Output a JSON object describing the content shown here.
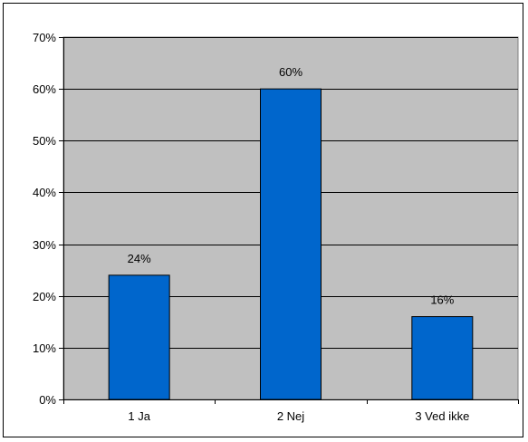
{
  "chart_data": {
    "type": "bar",
    "title": "",
    "xlabel": "",
    "ylabel": "",
    "categories": [
      "1 Ja",
      "2 Nej",
      "3 Ved ikke"
    ],
    "values": [
      24,
      60,
      16
    ],
    "data_labels": [
      "24%",
      "60%",
      "16%"
    ],
    "ylim": [
      0,
      70
    ],
    "y_ticks": [
      0,
      10,
      20,
      30,
      40,
      50,
      60,
      70
    ],
    "y_tick_labels": [
      "0%",
      "10%",
      "20%",
      "30%",
      "40%",
      "50%",
      "60%",
      "70%"
    ],
    "grid": true,
    "legend": "none",
    "colors": {
      "bar": "#0066CC",
      "plot_background": "#C0C0C0",
      "gridline": "#000000"
    }
  }
}
